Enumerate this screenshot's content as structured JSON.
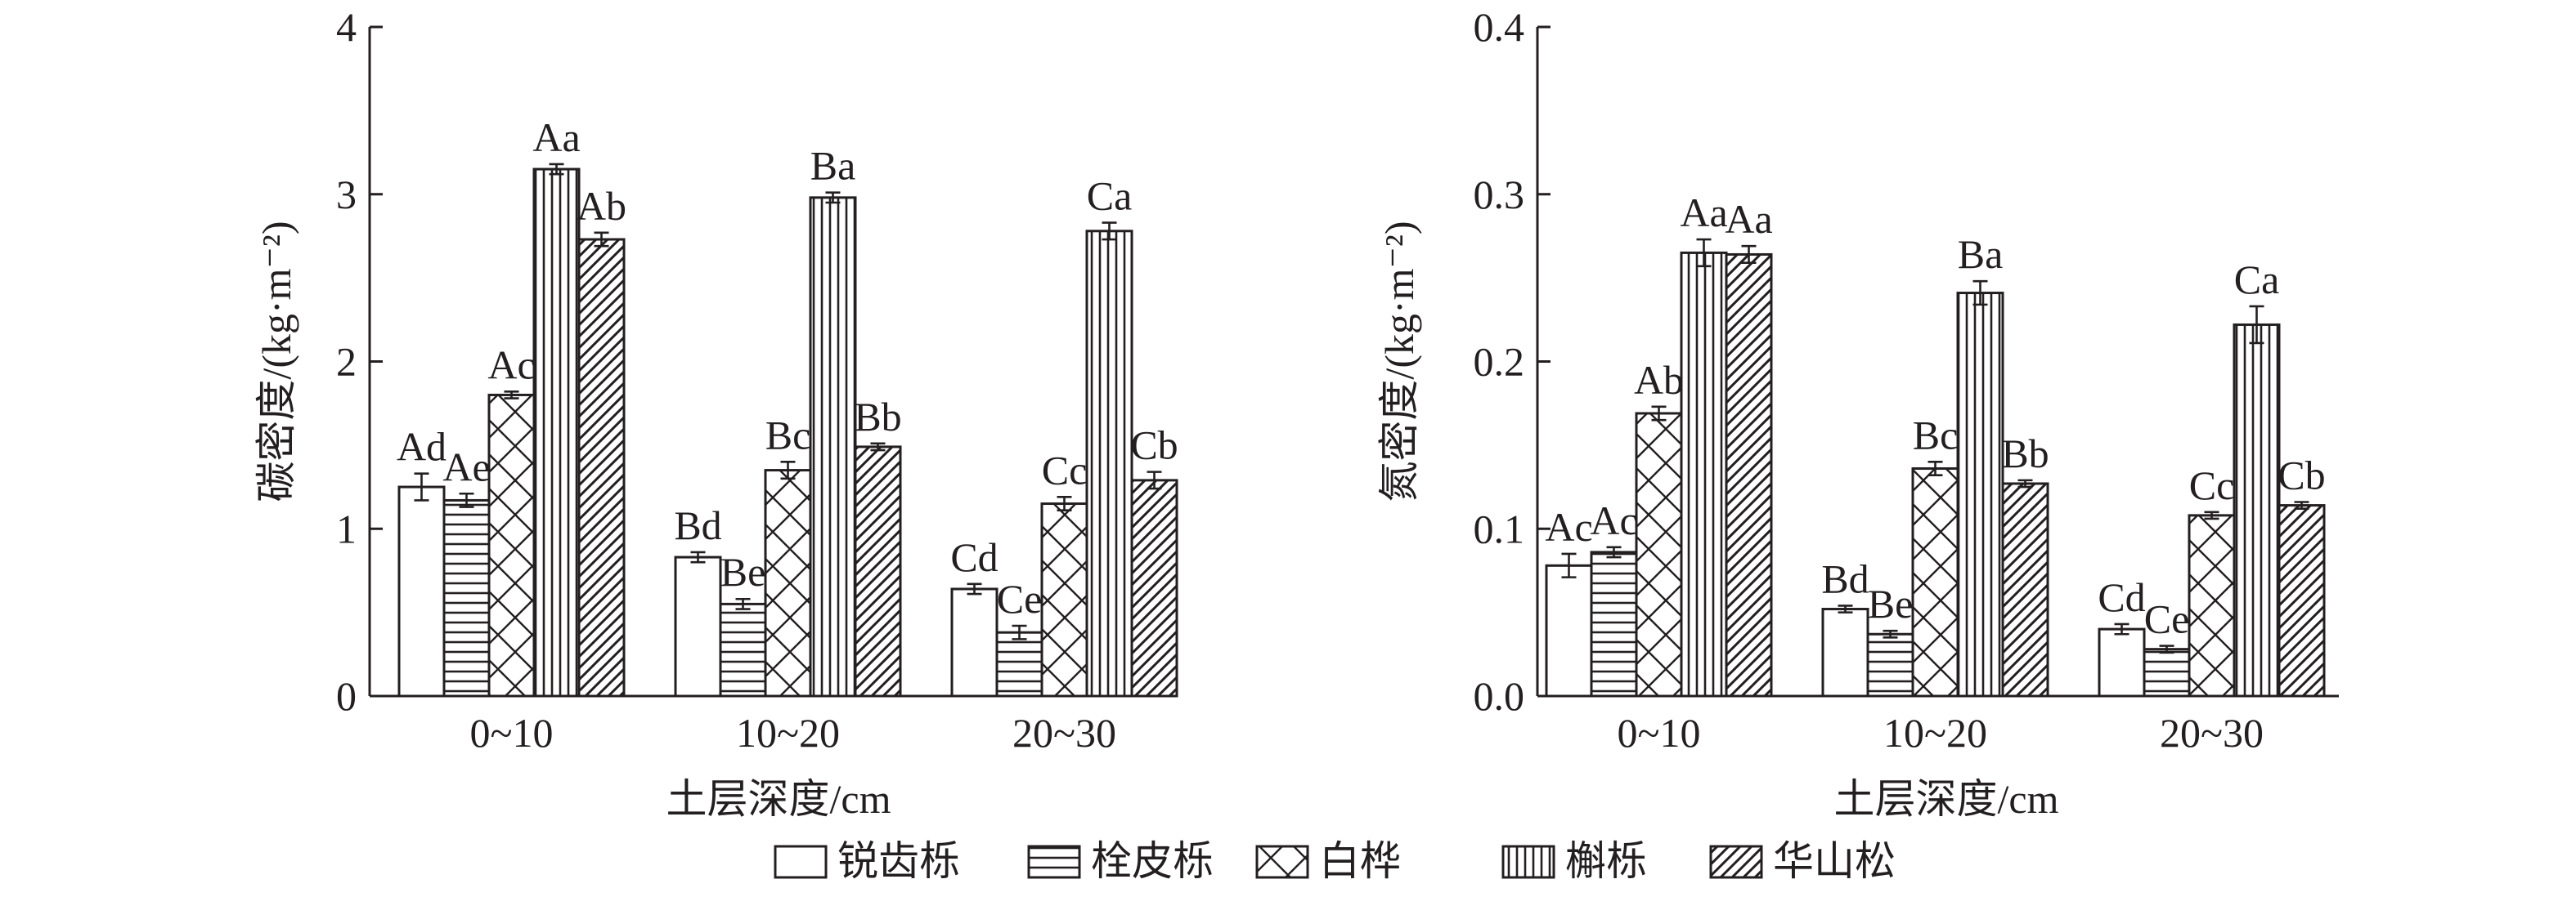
{
  "legend": {
    "placement": "bottom-center",
    "items": [
      {
        "name": "锐齿栎",
        "pattern": "blank"
      },
      {
        "name": "栓皮栎",
        "pattern": "horizontal"
      },
      {
        "name": "白桦",
        "pattern": "crosshatch"
      },
      {
        "name": "槲栎",
        "pattern": "vertical"
      },
      {
        "name": "华山松",
        "pattern": "diagonal"
      }
    ]
  },
  "colors": {
    "ink": "#231f20",
    "background": "#ffffff"
  },
  "chart_data": [
    {
      "type": "bar",
      "title": "",
      "xlabel": "土层深度/cm",
      "ylabel": "碳密度/(kg·m⁻²)",
      "categories": [
        "0~10",
        "10~20",
        "20~30"
      ],
      "ylim": [
        0,
        4
      ],
      "yticks": [
        "0",
        "1",
        "2",
        "3",
        "4"
      ],
      "yticks_values": [
        0,
        1,
        2,
        3,
        4
      ],
      "grid": false,
      "series": [
        {
          "name": "锐齿栎",
          "values": [
            1.25,
            0.83,
            0.64
          ],
          "errors": [
            0.08,
            0.03,
            0.03
          ],
          "labels": [
            "Ad",
            "Bd",
            "Cd"
          ]
        },
        {
          "name": "栓皮栎",
          "values": [
            1.17,
            0.55,
            0.38
          ],
          "errors": [
            0.04,
            0.03,
            0.04
          ],
          "labels": [
            "Ae",
            "Be",
            "Ce"
          ]
        },
        {
          "name": "白桦",
          "values": [
            1.8,
            1.35,
            1.15
          ],
          "errors": [
            0.02,
            0.05,
            0.04
          ],
          "labels": [
            "Ac",
            "Bc",
            "Cc"
          ]
        },
        {
          "name": "槲栎",
          "values": [
            3.15,
            2.98,
            2.78
          ],
          "errors": [
            0.03,
            0.03,
            0.05
          ],
          "labels": [
            "Aa",
            "Ba",
            "Ca"
          ]
        },
        {
          "name": "华山松",
          "values": [
            2.73,
            1.49,
            1.29
          ],
          "errors": [
            0.04,
            0.02,
            0.05
          ],
          "labels": [
            "Ab",
            "Bb",
            "Cb"
          ]
        }
      ]
    },
    {
      "type": "bar",
      "title": "",
      "xlabel": "土层深度/cm",
      "ylabel": "氮密度/(kg·m⁻²)",
      "categories": [
        "0~10",
        "10~20",
        "20~30"
      ],
      "ylim": [
        0,
        0.4
      ],
      "yticks": [
        "0.0",
        "0.1",
        "0.2",
        "0.3",
        "0.4"
      ],
      "yticks_values": [
        0,
        0.1,
        0.2,
        0.3,
        0.4
      ],
      "grid": false,
      "series": [
        {
          "name": "锐齿栎",
          "values": [
            0.078,
            0.052,
            0.04
          ],
          "errors": [
            0.007,
            0.002,
            0.003
          ],
          "labels": [
            "Ac",
            "Bd",
            "Cd"
          ]
        },
        {
          "name": "栓皮栎",
          "values": [
            0.086,
            0.037,
            0.028
          ],
          "errors": [
            0.003,
            0.002,
            0.002
          ],
          "labels": [
            "Ac",
            "Be",
            "Ce"
          ]
        },
        {
          "name": "白桦",
          "values": [
            0.169,
            0.136,
            0.108
          ],
          "errors": [
            0.004,
            0.004,
            0.002
          ],
          "labels": [
            "Ab",
            "Bc",
            "Cc"
          ]
        },
        {
          "name": "槲栎",
          "values": [
            0.265,
            0.241,
            0.222
          ],
          "errors": [
            0.008,
            0.007,
            0.011
          ],
          "labels": [
            "Aa",
            "Ba",
            "Ca"
          ]
        },
        {
          "name": "华山松",
          "values": [
            0.264,
            0.127,
            0.114
          ],
          "errors": [
            0.005,
            0.002,
            0.002
          ],
          "labels": [
            "Aa",
            "Bb",
            "Cb"
          ]
        }
      ]
    }
  ]
}
